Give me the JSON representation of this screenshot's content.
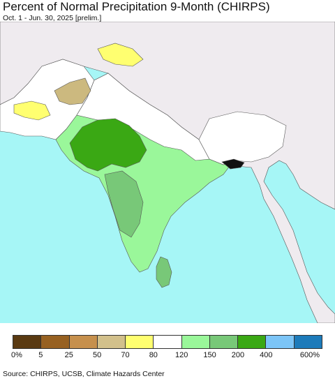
{
  "header": {
    "title": "Percent of Normal Precipitation 9-Month (CHIRPS)",
    "subtitle": "Oct. 1 - Jun. 30, 2025 [prelim.]"
  },
  "map": {
    "colors": {
      "ocean": "#a6f6f6",
      "land_outside": "#efebef",
      "normal": "#ffffff",
      "green_light": "#9af79a",
      "green_mid": "#78c878",
      "green_dark": "#3aa814",
      "tan": "#ccb97f",
      "yellow": "#ffff70",
      "black": "#111111"
    }
  },
  "legend": {
    "colors": [
      "#5a3a12",
      "#976121",
      "#c6904d",
      "#d2c08b",
      "#ffff70",
      "#ffffff",
      "#9af79a",
      "#78c878",
      "#3aa814",
      "#7cc5f7",
      "#1d7bba"
    ],
    "labels": [
      "0%",
      "5",
      "25",
      "50",
      "70",
      "80",
      "120",
      "150",
      "200",
      "400",
      "600%"
    ]
  },
  "footer": {
    "source": "Source: CHIRPS, UCSB, Climate Hazards Center"
  }
}
